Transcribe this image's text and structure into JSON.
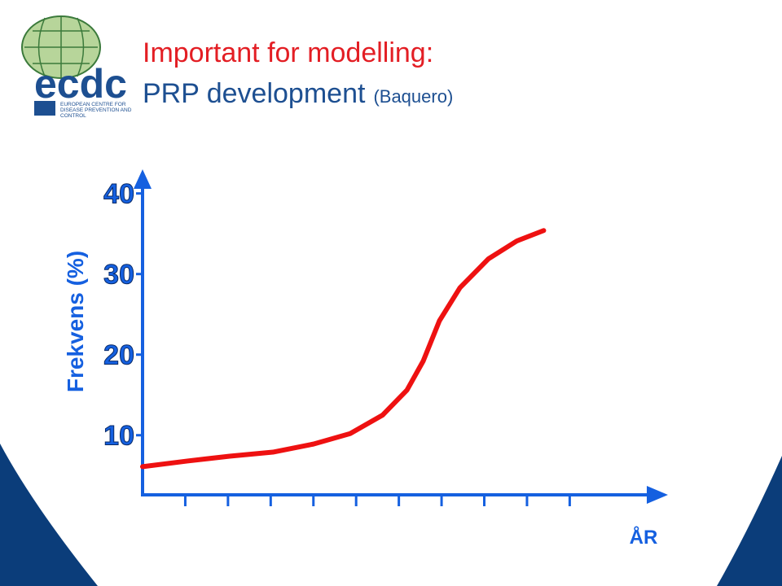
{
  "logo": {
    "name": "ecdc",
    "subtitle": [
      "EUROPEAN CENTRE FOR",
      "DISEASE PREVENTION AND",
      "CONTROL"
    ]
  },
  "chart_data": {
    "type": "line",
    "title": "Important for modelling:",
    "subtitle": "PRP development",
    "source": "(Baquero)",
    "y_label": "Frekvens (%)",
    "x_label": "ÅR",
    "x": [
      0,
      1.05,
      2.04,
      3.05,
      4.0,
      4.86,
      5.62,
      6.19,
      6.57,
      6.95,
      7.43,
      8.1,
      8.76,
      9.39
    ],
    "series": [
      {
        "name": "PRP",
        "color": "#ee1111",
        "values": [
          6.1,
          6.8,
          7.4,
          7.9,
          8.9,
          10.2,
          12.5,
          15.6,
          19.2,
          24.2,
          28.3,
          31.9,
          34.1,
          35.4
        ]
      }
    ],
    "xlim": [
      0,
      12.3
    ],
    "xticks": [
      1,
      2,
      3,
      4,
      5,
      6,
      7,
      8,
      9,
      10
    ],
    "ylim": [
      2.6,
      43
    ],
    "yticks": [
      10,
      20,
      30,
      40
    ],
    "grid": false
  }
}
